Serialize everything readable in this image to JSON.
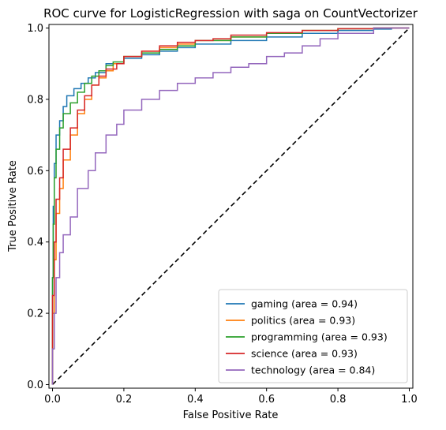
{
  "chart_data": {
    "type": "line",
    "title": "ROC curve for LogisticRegression with saga on CountVectorizer",
    "xlabel": "False Positive Rate",
    "ylabel": "True Positive Rate",
    "xlim": [
      -0.01,
      1.01
    ],
    "ylim": [
      -0.01,
      1.01
    ],
    "x_ticks": [
      "0.0",
      "0.2",
      "0.4",
      "0.6",
      "0.8",
      "1.0"
    ],
    "y_ticks": [
      "0.0",
      "0.2",
      "0.4",
      "0.6",
      "0.8",
      "1.0"
    ],
    "grid": false,
    "legend_position": "bottom-right",
    "colors": {
      "gaming": "#1f77b4",
      "politics": "#ff7f0e",
      "programming": "#2ca02c",
      "science": "#d62728",
      "technology": "#9467bd",
      "chance": "#000000"
    },
    "series": [
      {
        "name": "gaming (area = 0.94)",
        "key": "gaming",
        "x": [
          0,
          0.002,
          0.005,
          0.01,
          0.02,
          0.03,
          0.04,
          0.06,
          0.08,
          0.1,
          0.12,
          0.15,
          0.2,
          0.25,
          0.3,
          0.35,
          0.4,
          0.5,
          0.6,
          0.7,
          0.8,
          0.9,
          0.95,
          1.0
        ],
        "y": [
          0,
          0.3,
          0.5,
          0.62,
          0.7,
          0.74,
          0.78,
          0.81,
          0.83,
          0.845,
          0.86,
          0.875,
          0.9,
          0.915,
          0.925,
          0.935,
          0.945,
          0.955,
          0.965,
          0.975,
          0.985,
          0.993,
          0.997,
          1.0
        ]
      },
      {
        "name": "politics (area = 0.93)",
        "key": "politics",
        "x": [
          0,
          0.005,
          0.01,
          0.02,
          0.03,
          0.05,
          0.07,
          0.09,
          0.11,
          0.13,
          0.15,
          0.17,
          0.2,
          0.25,
          0.3,
          0.35,
          0.4,
          0.5,
          0.6,
          0.7,
          0.8,
          0.9,
          1.0
        ],
        "y": [
          0,
          0.2,
          0.35,
          0.48,
          0.55,
          0.63,
          0.7,
          0.76,
          0.8,
          0.84,
          0.86,
          0.88,
          0.9,
          0.92,
          0.935,
          0.945,
          0.955,
          0.965,
          0.975,
          0.985,
          0.993,
          0.998,
          1.0
        ]
      },
      {
        "name": "programming (area = 0.93)",
        "key": "programming",
        "x": [
          0,
          0.002,
          0.005,
          0.01,
          0.02,
          0.03,
          0.05,
          0.07,
          0.09,
          0.11,
          0.13,
          0.15,
          0.17,
          0.2,
          0.25,
          0.3,
          0.35,
          0.4,
          0.5,
          0.6,
          0.7,
          0.8,
          0.9,
          1.0
        ],
        "y": [
          0,
          0.3,
          0.45,
          0.58,
          0.66,
          0.72,
          0.76,
          0.79,
          0.82,
          0.845,
          0.865,
          0.88,
          0.895,
          0.905,
          0.92,
          0.93,
          0.94,
          0.95,
          0.965,
          0.975,
          0.985,
          0.993,
          0.998,
          1.0
        ]
      },
      {
        "name": "science (area = 0.93)",
        "key": "science",
        "x": [
          0,
          0.005,
          0.01,
          0.02,
          0.03,
          0.05,
          0.07,
          0.09,
          0.11,
          0.13,
          0.15,
          0.18,
          0.2,
          0.25,
          0.3,
          0.35,
          0.4,
          0.45,
          0.5,
          0.6,
          0.7,
          0.8,
          0.9,
          1.0
        ],
        "y": [
          0,
          0.25,
          0.4,
          0.52,
          0.58,
          0.66,
          0.72,
          0.77,
          0.81,
          0.84,
          0.865,
          0.885,
          0.9,
          0.92,
          0.935,
          0.95,
          0.96,
          0.965,
          0.97,
          0.98,
          0.987,
          0.993,
          0.998,
          1.0
        ]
      },
      {
        "name": "technology (area = 0.84)",
        "key": "technology",
        "x": [
          0,
          0.005,
          0.01,
          0.02,
          0.03,
          0.05,
          0.07,
          0.1,
          0.12,
          0.15,
          0.18,
          0.2,
          0.25,
          0.3,
          0.35,
          0.4,
          0.45,
          0.5,
          0.55,
          0.6,
          0.65,
          0.7,
          0.75,
          0.8,
          0.9,
          1.0
        ],
        "y": [
          0,
          0.1,
          0.2,
          0.3,
          0.37,
          0.42,
          0.47,
          0.55,
          0.6,
          0.65,
          0.7,
          0.73,
          0.77,
          0.8,
          0.825,
          0.845,
          0.86,
          0.875,
          0.89,
          0.9,
          0.92,
          0.93,
          0.95,
          0.97,
          0.985,
          1.0
        ]
      }
    ],
    "reference_line": {
      "style": "dashed",
      "x": [
        0,
        1
      ],
      "y": [
        0,
        1
      ]
    }
  }
}
